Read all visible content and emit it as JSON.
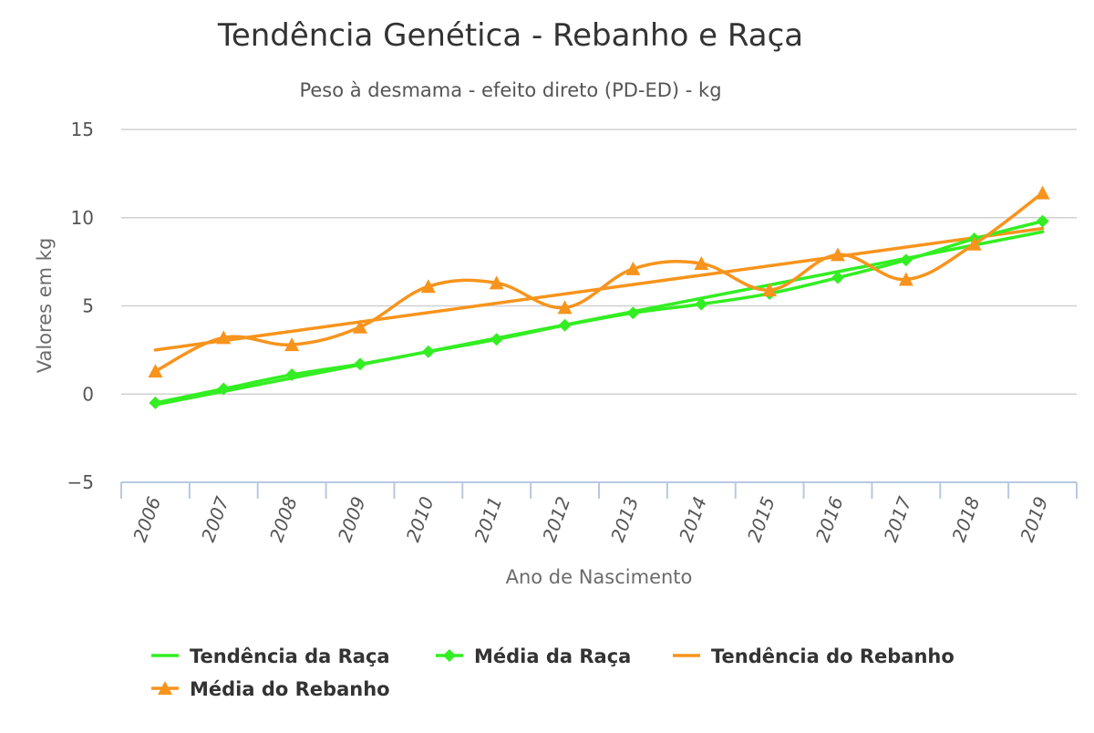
{
  "chart_data": {
    "type": "line",
    "title": "Tendência Genética - Rebanho e Raça",
    "subtitle": "Peso à desmama - efeito direto (PD-ED) - kg",
    "xlabel": "Ano de Nascimento",
    "ylabel": "Valores em kg",
    "categories": [
      "2006",
      "2007",
      "2008",
      "2009",
      "2010",
      "2011",
      "2012",
      "2013",
      "2014",
      "2015",
      "2016",
      "2017",
      "2018",
      "2019"
    ],
    "yticks": [
      "15",
      "10",
      "5",
      "0",
      "−5"
    ],
    "ylim": [
      -5,
      15
    ],
    "grid": true,
    "legend_position": "bottom",
    "series": [
      {
        "name": "Tendência da Raça",
        "kind": "trend",
        "color": "#33ee22",
        "marker": "none",
        "values": [
          -0.6,
          0.2,
          0.95,
          1.7,
          2.45,
          3.2,
          3.95,
          4.7,
          5.45,
          6.2,
          6.95,
          7.7,
          8.45,
          9.2
        ]
      },
      {
        "name": "Média da Raça",
        "kind": "series",
        "color": "#33ee22",
        "marker": "diamond",
        "values": [
          -0.5,
          0.3,
          1.1,
          1.7,
          2.4,
          3.1,
          3.9,
          4.6,
          5.1,
          5.7,
          6.6,
          7.6,
          8.8,
          9.8
        ]
      },
      {
        "name": "Tendência do Rebanho",
        "kind": "trend",
        "color": "#f7941d",
        "marker": "none",
        "values": [
          2.5,
          3.03,
          3.56,
          4.09,
          4.62,
          5.15,
          5.68,
          6.21,
          6.74,
          7.27,
          7.8,
          8.33,
          8.86,
          9.39
        ]
      },
      {
        "name": "Média do Rebanho",
        "kind": "series",
        "color": "#f7941d",
        "marker": "triangle",
        "values": [
          1.3,
          3.2,
          2.8,
          3.8,
          6.1,
          6.3,
          4.9,
          7.1,
          7.4,
          5.9,
          7.9,
          6.5,
          8.5,
          11.4
        ]
      }
    ]
  }
}
